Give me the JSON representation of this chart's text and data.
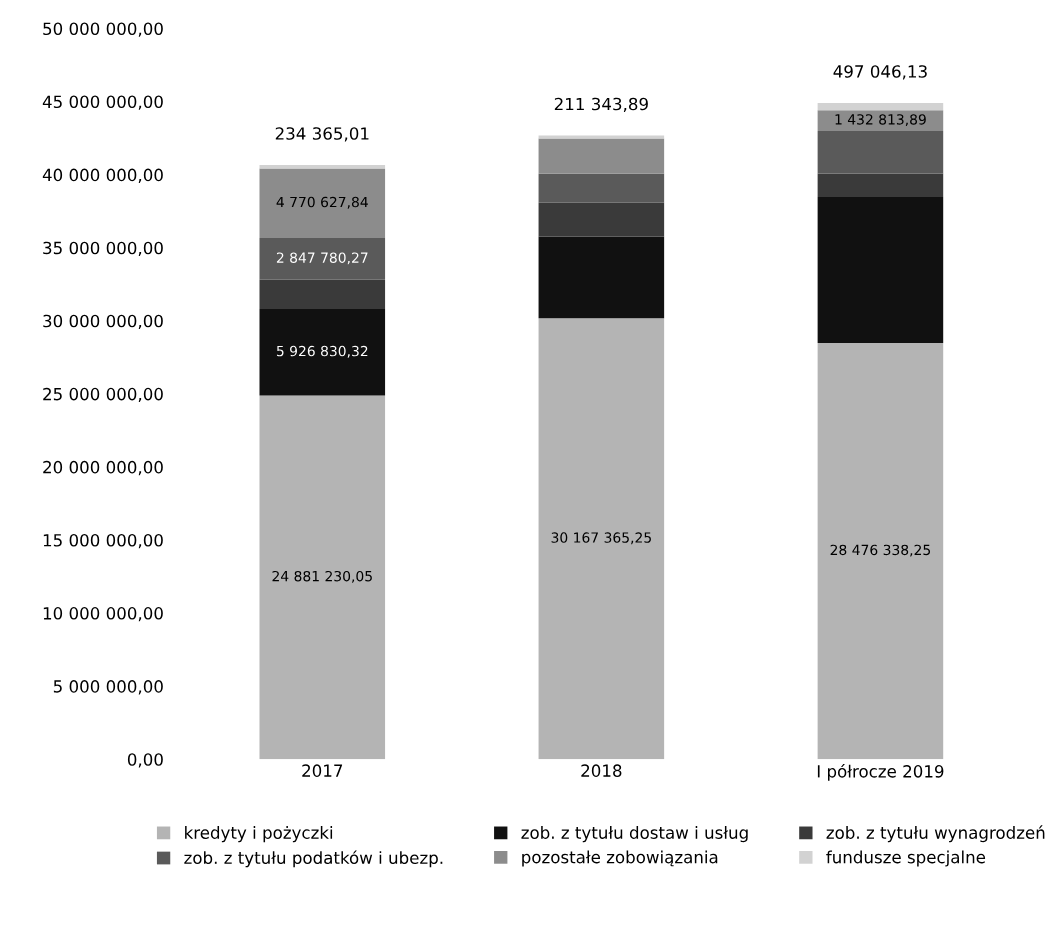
{
  "chart_data": {
    "type": "bar",
    "stacked": true,
    "categories": [
      "2017",
      "2018",
      "I półrocze 2019"
    ],
    "ylim": [
      0,
      50000000
    ],
    "yticks": [
      {
        "value": 0,
        "label": "0,00"
      },
      {
        "value": 5000000,
        "label": "5 000 000,00"
      },
      {
        "value": 10000000,
        "label": "10 000 000,00"
      },
      {
        "value": 15000000,
        "label": "15 000 000,00"
      },
      {
        "value": 20000000,
        "label": "20 000 000,00"
      },
      {
        "value": 25000000,
        "label": "25 000 000,00"
      },
      {
        "value": 30000000,
        "label": "30 000 000,00"
      },
      {
        "value": 35000000,
        "label": "35 000 000,00"
      },
      {
        "value": 40000000,
        "label": "40 000 000,00"
      },
      {
        "value": 45000000,
        "label": "45 000 000,00"
      },
      {
        "value": 50000000,
        "label": "50 000 000,00"
      }
    ],
    "grid": false,
    "legend": "bottom",
    "series": [
      {
        "name": "kredyty i pożyczki",
        "color": "#b4b4b4",
        "values": [
          24881230.05,
          30167365.25,
          28476338.25
        ],
        "value_labels": [
          "24 881 230,05",
          "30 167 365,25",
          "28 476 338,25"
        ]
      },
      {
        "name": "zob. z tytułu dostaw i usług",
        "color": "#111111",
        "values": [
          5926830.32,
          5600000,
          10000000
        ],
        "value_labels": [
          "5 926 830,32",
          null,
          null
        ]
      },
      {
        "name": "zob. z tytułu wynagrodzeń",
        "color": "#3a3a3a",
        "values": [
          2000000,
          2300000,
          1600000
        ],
        "value_labels": [
          null,
          null,
          null
        ]
      },
      {
        "name": "zob. z tytułu podatków i ubezp.",
        "color": "#5a5a5a",
        "values": [
          2847780.27,
          2000000,
          2900000
        ],
        "value_labels": [
          "2 847 780,27",
          null,
          null
        ]
      },
      {
        "name": "pozostałe zobowiązania",
        "color": "#8c8c8c",
        "values": [
          4770627.84,
          2400000,
          1432813.89
        ],
        "value_labels": [
          "4 770 627,84",
          null,
          "1 432 813,89"
        ]
      },
      {
        "name": "fundusze specjalne",
        "color": "#d2d2d2",
        "values": [
          234365.01,
          211343.89,
          497046.13
        ],
        "value_labels": [
          "234 365,01",
          "211 343,89",
          "497 046,13"
        ]
      }
    ]
  }
}
